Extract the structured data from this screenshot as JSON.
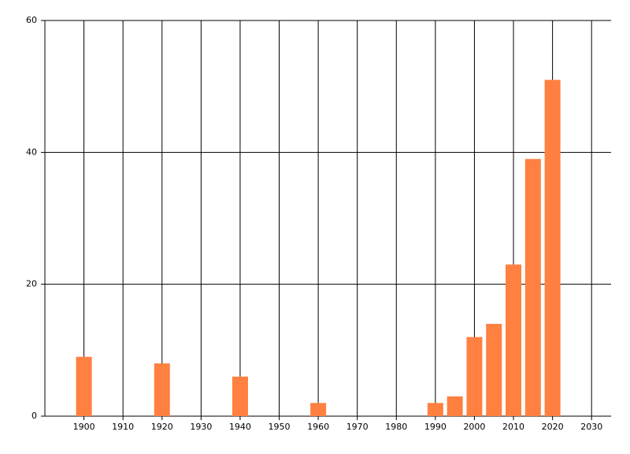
{
  "chart_data": {
    "type": "bar",
    "x": [
      1900,
      1920,
      1940,
      1960,
      1990,
      1995,
      2000,
      2005,
      2010,
      2015,
      2020
    ],
    "values": [
      9,
      8,
      6,
      2,
      2,
      3,
      12,
      14,
      23,
      39,
      51
    ],
    "color": "#ff8040",
    "xlim": [
      1890,
      2035
    ],
    "xticks": [
      1900,
      1910,
      1920,
      1930,
      1940,
      1950,
      1960,
      1970,
      1980,
      1990,
      2000,
      2010,
      2020,
      2030
    ],
    "ylim": [
      0,
      60
    ],
    "yticks": [
      0,
      20,
      40,
      60
    ],
    "grid": true
  }
}
